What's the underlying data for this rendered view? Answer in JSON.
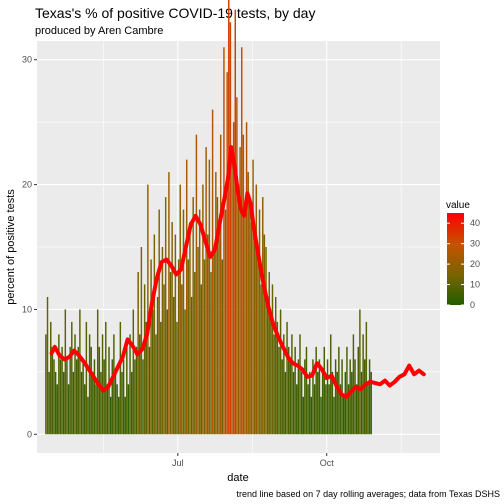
{
  "chart_data": {
    "type": "bar",
    "title": "Texas's % of positive COVID-19 tests, by day",
    "subtitle": "produced by Aren Cambre",
    "caption": "trend line based on 7 day rolling averages; data from Texas DSHS",
    "xlabel": "date",
    "ylabel": "percent of positive tests",
    "ylim": [
      -1.5,
      31.5
    ],
    "yticks": [
      0,
      10,
      20,
      30
    ],
    "x_range": [
      "2020-04-05",
      "2020-12-10"
    ],
    "x_ticks": [
      {
        "date": "2020-07-01",
        "label": "Jul"
      },
      {
        "date": "2020-10-01",
        "label": "Oct"
      }
    ],
    "grid": true,
    "legend": {
      "title": "value",
      "position": "right",
      "range": [
        0,
        45
      ],
      "breaks": [
        0,
        10,
        20,
        30,
        40
      ],
      "colors": [
        "#1f5d00",
        "#7a6400",
        "#c55200",
        "#ff0000"
      ]
    },
    "trend_color": "#ff0000",
    "series": [
      {
        "kind": "bars",
        "start_date": "2020-04-10",
        "step_days": 1,
        "values": [
          8,
          11,
          5,
          9,
          7,
          6,
          5,
          4,
          8,
          6,
          7,
          5,
          10,
          6,
          4,
          7,
          9,
          5,
          8,
          6,
          7,
          10,
          5,
          6,
          4,
          9,
          3,
          8,
          7,
          5,
          6,
          4,
          10,
          7,
          5,
          8,
          6,
          9,
          4,
          7,
          3,
          6,
          8,
          5,
          4,
          3,
          9,
          5,
          6,
          3,
          7,
          4,
          8,
          5,
          10,
          6,
          7,
          13,
          8,
          15,
          6,
          12,
          9,
          20,
          7,
          14,
          10,
          16,
          8,
          11,
          18,
          9,
          15,
          12,
          19,
          10,
          21,
          13,
          17,
          11,
          16,
          9,
          14,
          20,
          12,
          18,
          10,
          22,
          14,
          17,
          11,
          19,
          13,
          24,
          15,
          18,
          12,
          20,
          14,
          23,
          16,
          22,
          13,
          26,
          15,
          21,
          19,
          17,
          24,
          14,
          31,
          18,
          29,
          35,
          33,
          22,
          25,
          34,
          27,
          20,
          23,
          31,
          24,
          18,
          25,
          21,
          19,
          17,
          22,
          16,
          20,
          14,
          18,
          12,
          19,
          16,
          15,
          11,
          13,
          10,
          12,
          8,
          11,
          9,
          7,
          10,
          6,
          8,
          5,
          9,
          7,
          6,
          8,
          5,
          7,
          4,
          6,
          8,
          5,
          3,
          6,
          7,
          4,
          5,
          3,
          6,
          4,
          7,
          5,
          6,
          3,
          5,
          7,
          4,
          6,
          4,
          8,
          5,
          3,
          6,
          5,
          7,
          4,
          6,
          3,
          5,
          7,
          4,
          6,
          5,
          8,
          6,
          4,
          7,
          10,
          5,
          8,
          6,
          9,
          4,
          6,
          5
        ]
      },
      {
        "kind": "trend",
        "name": "7 day rolling average",
        "points": [
          [
            "2020-04-14",
            6.5
          ],
          [
            "2020-04-16",
            7
          ],
          [
            "2020-04-19",
            6.3
          ],
          [
            "2020-04-22",
            6
          ],
          [
            "2020-04-25",
            6.2
          ],
          [
            "2020-04-28",
            6.7
          ],
          [
            "2020-05-01",
            6.3
          ],
          [
            "2020-05-04",
            5.8
          ],
          [
            "2020-05-07",
            5.2
          ],
          [
            "2020-05-10",
            4.6
          ],
          [
            "2020-05-13",
            4
          ],
          [
            "2020-05-16",
            3.5
          ],
          [
            "2020-05-19",
            3.8
          ],
          [
            "2020-05-22",
            4.6
          ],
          [
            "2020-05-25",
            5.4
          ],
          [
            "2020-05-28",
            6.2
          ],
          [
            "2020-05-31",
            7.6
          ],
          [
            "2020-06-03",
            7.1
          ],
          [
            "2020-06-06",
            6.4
          ],
          [
            "2020-06-09",
            6.8
          ],
          [
            "2020-06-12",
            8
          ],
          [
            "2020-06-15",
            10.5
          ],
          [
            "2020-06-18",
            12.5
          ],
          [
            "2020-06-21",
            13.8
          ],
          [
            "2020-06-24",
            14
          ],
          [
            "2020-06-27",
            13.5
          ],
          [
            "2020-06-30",
            12.8
          ],
          [
            "2020-07-03",
            13.2
          ],
          [
            "2020-07-06",
            15
          ],
          [
            "2020-07-09",
            16.8
          ],
          [
            "2020-07-12",
            17.5
          ],
          [
            "2020-07-15",
            16.8
          ],
          [
            "2020-07-18",
            15.5
          ],
          [
            "2020-07-21",
            14.2
          ],
          [
            "2020-07-24",
            14.8
          ],
          [
            "2020-07-27",
            17
          ],
          [
            "2020-07-30",
            19
          ],
          [
            "2020-08-01",
            20.5
          ],
          [
            "2020-08-03",
            23
          ],
          [
            "2020-08-05",
            21.5
          ],
          [
            "2020-08-07",
            19.5
          ],
          [
            "2020-08-09",
            18
          ],
          [
            "2020-08-11",
            17.5
          ],
          [
            "2020-08-13",
            19.3
          ],
          [
            "2020-08-15",
            18.5
          ],
          [
            "2020-08-17",
            16.5
          ],
          [
            "2020-08-20",
            14.2
          ],
          [
            "2020-08-23",
            12
          ],
          [
            "2020-08-26",
            10.2
          ],
          [
            "2020-08-29",
            8.8
          ],
          [
            "2020-09-01",
            7.8
          ],
          [
            "2020-09-04",
            7
          ],
          [
            "2020-09-07",
            6.2
          ],
          [
            "2020-09-10",
            5.7
          ],
          [
            "2020-09-13",
            5.5
          ],
          [
            "2020-09-16",
            5.2
          ],
          [
            "2020-09-19",
            4.6
          ],
          [
            "2020-09-22",
            4.7
          ],
          [
            "2020-09-25",
            5.7
          ],
          [
            "2020-09-28",
            5.2
          ],
          [
            "2020-10-01",
            4.5
          ],
          [
            "2020-10-04",
            4.7
          ],
          [
            "2020-10-07",
            3.9
          ],
          [
            "2020-10-10",
            3.2
          ],
          [
            "2020-10-13",
            3
          ],
          [
            "2020-10-16",
            3.4
          ],
          [
            "2020-10-19",
            3.8
          ],
          [
            "2020-10-22",
            3.6
          ],
          [
            "2020-10-25",
            4
          ],
          [
            "2020-10-28",
            4.2
          ],
          [
            "2020-10-31",
            4.1
          ],
          [
            "2020-11-03",
            4
          ],
          [
            "2020-11-06",
            4.3
          ],
          [
            "2020-11-09",
            3.9
          ],
          [
            "2020-11-12",
            4.2
          ],
          [
            "2020-11-15",
            4.6
          ],
          [
            "2020-11-18",
            4.8
          ],
          [
            "2020-11-21",
            5.5
          ],
          [
            "2020-11-24",
            4.8
          ],
          [
            "2020-11-27",
            5.1
          ],
          [
            "2020-11-30",
            4.8
          ]
        ]
      }
    ]
  }
}
